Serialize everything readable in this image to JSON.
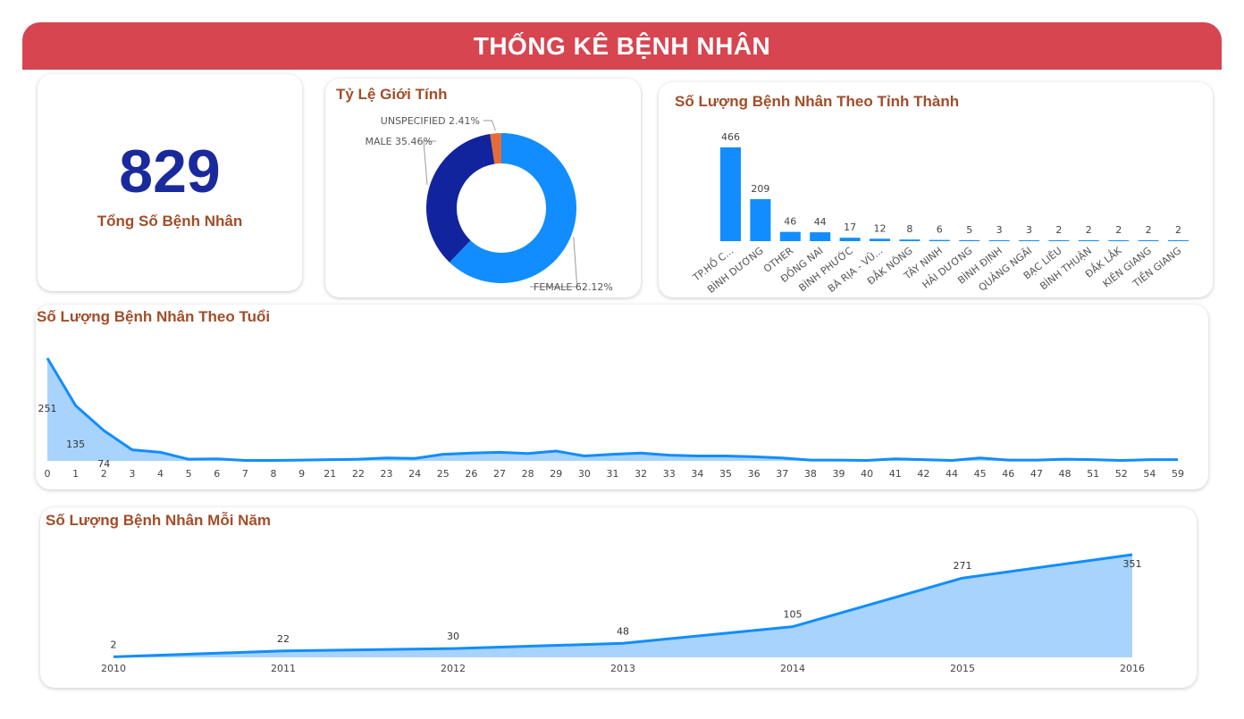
{
  "header": {
    "title": "THỐNG KÊ BỆNH NHÂN"
  },
  "kpi": {
    "value": "829",
    "label": "Tổng Số Bệnh Nhân"
  },
  "gender": {
    "title": "Tỷ Lệ Giới Tính",
    "chart_data": {
      "type": "pie",
      "variant": "donut",
      "slices": [
        {
          "label": "FEMALE",
          "value": 62.12,
          "display": "FEMALE 62.12%",
          "color": "#118dff"
        },
        {
          "label": "MALE",
          "value": 35.46,
          "display": "MALE 35.46%",
          "color": "#12239e"
        },
        {
          "label": "UNSPECIFIED",
          "value": 2.41,
          "display": "UNSPECIFIED 2.41%",
          "color": "#e66c37"
        }
      ]
    }
  },
  "province": {
    "title": "Số Lượng Bệnh Nhân Theo Tỉnh Thành",
    "chart_data": {
      "type": "bar",
      "categories": [
        "TP.HỒ C...",
        "BÌNH DƯƠNG",
        "OTHER",
        "ĐỒNG NAI",
        "BÌNH PHƯỚC",
        "BÀ RỊA - VŨ...",
        "ĐẮK NÔNG",
        "TÂY NINH",
        "HẢI DƯƠNG",
        "BÌNH ĐỊNH",
        "QUẢNG NGÃI",
        "BẠC LIÊU",
        "BÌNH THUẬN",
        "ĐẮK LẮK",
        "KIÊN GIANG",
        "TIỀN GIANG"
      ],
      "values": [
        466,
        209,
        46,
        44,
        17,
        12,
        8,
        6,
        5,
        3,
        3,
        2,
        2,
        2,
        2,
        2
      ],
      "ylim": [
        0,
        466
      ],
      "color": "#118dff"
    }
  },
  "age": {
    "title": "Số Lượng Bệnh Nhân Theo Tuổi",
    "chart_data": {
      "type": "area",
      "x": [
        "0",
        "1",
        "2",
        "3",
        "4",
        "5",
        "6",
        "7",
        "8",
        "9",
        "21",
        "22",
        "23",
        "24",
        "25",
        "26",
        "27",
        "28",
        "29",
        "30",
        "31",
        "32",
        "33",
        "34",
        "35",
        "36",
        "37",
        "38",
        "39",
        "40",
        "41",
        "42",
        "44",
        "45",
        "46",
        "47",
        "48",
        "51",
        "52",
        "54",
        "59"
      ],
      "values": [
        251,
        135,
        74,
        27,
        21,
        4,
        5,
        1,
        1,
        2,
        3,
        4,
        7,
        6,
        16,
        19,
        21,
        18,
        24,
        12,
        16,
        19,
        14,
        12,
        12,
        10,
        7,
        2,
        2,
        1,
        5,
        3,
        1,
        7,
        2,
        2,
        4,
        3,
        1,
        3,
        3
      ],
      "labels": {
        "0": "251",
        "1": "135",
        "2": "74"
      },
      "ylim": [
        0,
        251
      ],
      "color": "#118dff"
    }
  },
  "year": {
    "title": "Số Lượng Bệnh Nhân Mỗi Năm",
    "chart_data": {
      "type": "area",
      "x": [
        "2010",
        "2011",
        "2012",
        "2013",
        "2014",
        "2015",
        "2016"
      ],
      "values": [
        2,
        22,
        30,
        48,
        105,
        271,
        351
      ],
      "ylim": [
        0,
        351
      ],
      "color": "#118dff"
    }
  }
}
